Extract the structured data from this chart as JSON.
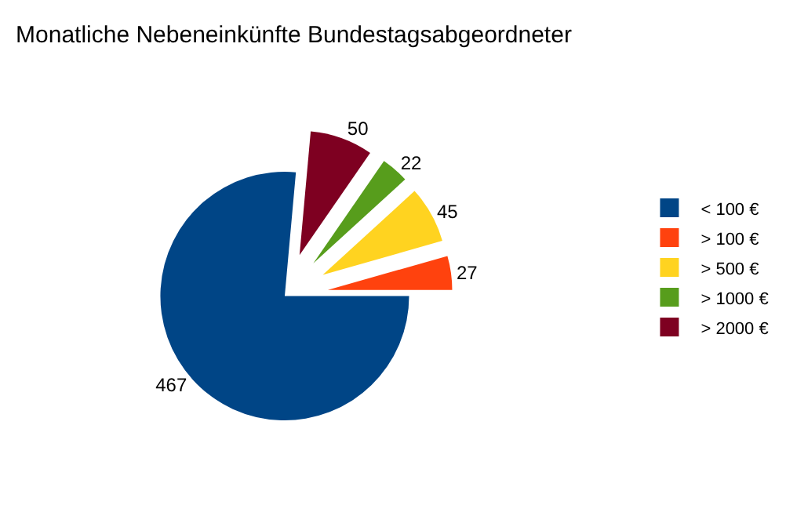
{
  "chart_data": {
    "type": "pie",
    "title": "Monatliche Nebeneinkünfte Bundestagsabgeordneter",
    "categories": [
      "< 100 €",
      "> 100 €",
      "> 500 €",
      "> 1000 €",
      "> 2000 €"
    ],
    "values": [
      467,
      27,
      45,
      22,
      50
    ],
    "colors": [
      "#004586",
      "#ff420e",
      "#ffd320",
      "#579d1c",
      "#7e0021"
    ],
    "data_labels": true,
    "legend": "right"
  }
}
